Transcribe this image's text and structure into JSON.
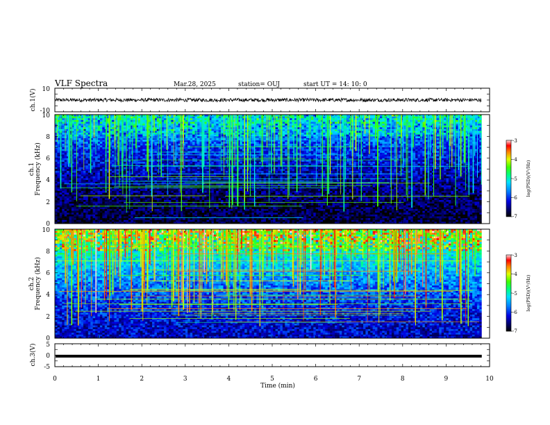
{
  "header": {
    "title": "VLF Spectra",
    "date": "Mar.28, 2025",
    "station": "station= OUJ",
    "start_ut": "start  UT =   14: 10: 0"
  },
  "chart_data": [
    {
      "type": "line",
      "name": "ch1-waveform",
      "ylabel": "ch.1(V)",
      "ylim": [
        -10,
        10
      ],
      "y_ticks": [
        "10",
        "-10"
      ],
      "trace_level": 0,
      "trace_amplitude": 0.6
    },
    {
      "type": "heatmap",
      "name": "ch1-spectrogram",
      "ylabel": "ch.1\nFrequency (kHz)",
      "ylim": [
        0,
        10
      ],
      "y_ticks": [
        "0",
        "2",
        "4",
        "6",
        "8",
        "10"
      ],
      "colorbar": {
        "label": "log(PSD)(V²/Hz)",
        "range": [
          -7,
          -3
        ],
        "ticks": [
          "-3",
          "-4",
          "-5",
          "-6",
          "-7"
        ]
      },
      "background_level": -6.8,
      "high_band_level": -5.3
    },
    {
      "type": "heatmap",
      "name": "ch2-spectrogram",
      "ylabel": "ch.2\nFrequency (kHz)",
      "ylim": [
        0,
        10
      ],
      "y_ticks": [
        "0",
        "2",
        "4",
        "6",
        "8",
        "10"
      ],
      "colorbar": {
        "label": "log(PSD)(V²/Hz)",
        "range": [
          -7,
          -3
        ],
        "ticks": [
          "-3",
          "-4",
          "-5",
          "-6",
          "-7"
        ]
      },
      "background_level": -6.3,
      "high_band_level": -4.4
    },
    {
      "type": "line",
      "name": "ch3-waveform",
      "ylabel": "ch.3(V)",
      "ylim": [
        -5,
        5
      ],
      "y_ticks": [
        "5",
        "0",
        "-5"
      ],
      "trace_level": -0.4
    }
  ],
  "x_axis": {
    "xlabel": "Time (min)",
    "xlim": [
      0,
      10
    ],
    "ticks": [
      "0",
      "1",
      "2",
      "3",
      "4",
      "5",
      "6",
      "7",
      "8",
      "9",
      "10"
    ],
    "data_end": 9.82
  }
}
